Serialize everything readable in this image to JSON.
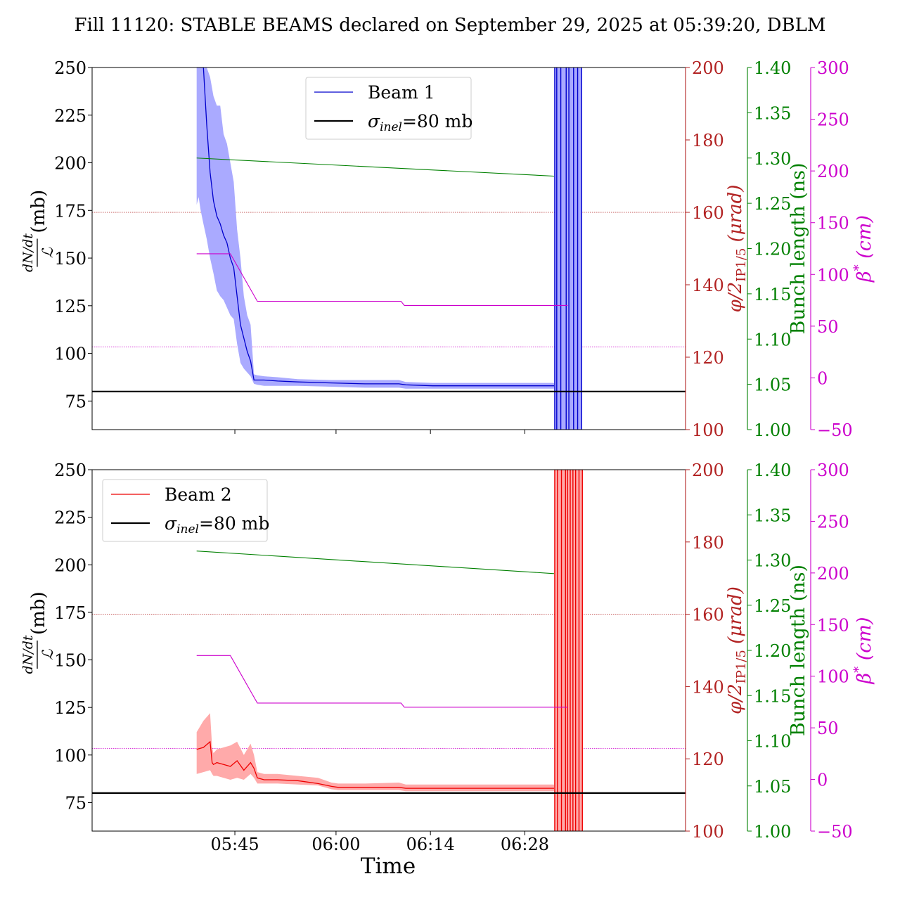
{
  "title": "Fill 11120: STABLE BEAMS declared on September 29, 2025 at 05:39:20, DBLM",
  "xlabel": "Time",
  "x_ticks": [
    "05:45",
    "06:00",
    "06:14",
    "06:28"
  ],
  "axis_labels": {
    "left_num": "dN/dt",
    "left_den": "ℒ",
    "left_unit": "(mb)",
    "crossing_main": "φ/2",
    "crossing_sub": "IP1/5",
    "crossing_unit": "(μrad)",
    "bunch": "Bunch length (ns)",
    "beta": "β",
    "beta_sup": "*",
    "beta_unit": "(cm)"
  },
  "colors": {
    "beam1": "#0000cc",
    "beam1_band": "#aaaaff",
    "beam2": "#ee0000",
    "beam2_band": "#ffaaaa",
    "crossing": "#b22222",
    "bunch": "#008000",
    "beta": "#cc00cc",
    "sigma": "#000000"
  },
  "chart_data": [
    {
      "type": "line",
      "panel": "top",
      "legend_position": "upper-center",
      "ylim": [
        60,
        250
      ],
      "yticks": [
        "75",
        "100",
        "125",
        "150",
        "175",
        "200",
        "225",
        "250"
      ],
      "crossing_ticks": [
        "100",
        "120",
        "140",
        "160",
        "180",
        "200"
      ],
      "bunch_ticks": [
        "1.00",
        "1.05",
        "1.10",
        "1.15",
        "1.20",
        "1.25",
        "1.30",
        "1.35",
        "1.40"
      ],
      "beta_ticks": [
        "−50",
        "0",
        "50",
        "100",
        "150",
        "200",
        "250",
        "300"
      ],
      "legend": [
        "Beam 1",
        "σinel=80 mb"
      ],
      "sigma_inel": 80,
      "beam": {
        "name": "Beam 1",
        "x_min": [
          0,
          0.3,
          0.6,
          1,
          1.5,
          2,
          2.5,
          3,
          3.5,
          4,
          4.5,
          5,
          5.5,
          6,
          6.5,
          7,
          7.5,
          8,
          8.5,
          9,
          10,
          12,
          15,
          20,
          25,
          30,
          31,
          35,
          40,
          45,
          50,
          52,
          52.5,
          53
        ],
        "mean": [
          250,
          250,
          250,
          250,
          220,
          195,
          180,
          172,
          168,
          162,
          158,
          150,
          145,
          130,
          115,
          108,
          101,
          96,
          86,
          86,
          86,
          85.5,
          85,
          84.5,
          84,
          84,
          83.5,
          83,
          83,
          83,
          83,
          83,
          83,
          83
        ],
        "lower": [
          178,
          182,
          175,
          168,
          160,
          150,
          142,
          133,
          130,
          128,
          124,
          120,
          118,
          105,
          95,
          92,
          90,
          88,
          84,
          83.5,
          83,
          83,
          83,
          82.5,
          82,
          82,
          81.5,
          81.5,
          81.5,
          81.5,
          81.5,
          81.5,
          81.5,
          81.5
        ],
        "upper": [
          250,
          250,
          250,
          250,
          250,
          245,
          235,
          230,
          230,
          215,
          210,
          200,
          190,
          165,
          150,
          130,
          120,
          115,
          89,
          88.5,
          88,
          87.5,
          86.5,
          86,
          86,
          86,
          85,
          84.5,
          84.5,
          84.5,
          84.5,
          84.5,
          84.5,
          84.5
        ],
        "spikes_x_min": [
          53.1,
          53.4,
          54.0,
          54.8,
          55.2,
          55.9,
          56.5,
          57.1
        ]
      },
      "crossing_urad": 160,
      "bunch_length": {
        "x_min": [
          0,
          53
        ],
        "ns": [
          1.3,
          1.28
        ]
      },
      "beta_cm": {
        "x_min": [
          0,
          5,
          9,
          30.3,
          30.8,
          55
        ],
        "cm": [
          120,
          120,
          74,
          74,
          70,
          70
        ]
      },
      "beta_ref_cm": 30
    },
    {
      "type": "line",
      "panel": "bottom",
      "legend_position": "upper-left",
      "ylim": [
        60,
        250
      ],
      "yticks": [
        "75",
        "100",
        "125",
        "150",
        "175",
        "200",
        "225",
        "250"
      ],
      "crossing_ticks": [
        "100",
        "120",
        "140",
        "160",
        "180",
        "200"
      ],
      "bunch_ticks": [
        "1.00",
        "1.05",
        "1.10",
        "1.15",
        "1.20",
        "1.25",
        "1.30",
        "1.35",
        "1.40"
      ],
      "beta_ticks": [
        "−50",
        "0",
        "50",
        "100",
        "150",
        "200",
        "250",
        "300"
      ],
      "legend": [
        "Beam 2",
        "σinel=80 mb"
      ],
      "sigma_inel": 80,
      "beam": {
        "name": "Beam 2",
        "x_min": [
          0,
          1,
          2,
          2.3,
          2.5,
          3,
          4,
          5,
          6,
          7,
          8,
          8.5,
          9,
          10,
          12,
          15,
          18,
          20,
          21,
          25,
          30,
          31,
          35,
          40,
          45,
          50,
          53
        ],
        "mean": [
          103,
          104,
          107,
          96,
          95,
          96,
          95,
          94,
          97,
          92,
          96,
          93,
          88,
          87,
          87,
          86.5,
          85,
          83.5,
          83,
          83,
          83,
          82.5,
          82.5,
          82.5,
          82.5,
          82.5,
          82.5
        ],
        "lower": [
          90,
          91,
          92,
          90,
          89,
          89,
          88,
          87,
          88,
          87,
          90,
          88,
          85,
          85,
          85,
          84.5,
          84,
          82,
          81.5,
          81.5,
          81.5,
          81,
          81,
          81,
          81,
          81,
          81
        ],
        "upper": [
          112,
          118,
          122,
          104,
          101,
          103,
          104,
          105,
          107,
          100,
          106,
          100,
          91,
          90,
          90,
          89,
          88,
          85.5,
          85,
          85,
          85.5,
          84.5,
          84.5,
          84.5,
          84.5,
          84.5,
          84.5
        ],
        "spikes_x_min": [
          53.1,
          53.5,
          54.1,
          54.7,
          55.0,
          55.4,
          55.8,
          56.2,
          56.7,
          57.2
        ]
      },
      "crossing_urad": 160,
      "bunch_length": {
        "x_min": [
          0,
          53
        ],
        "ns": [
          1.31,
          1.285
        ]
      },
      "beta_cm": {
        "x_min": [
          0,
          5,
          9,
          30.3,
          30.8,
          55
        ],
        "cm": [
          120,
          120,
          74,
          74,
          70,
          70
        ]
      },
      "beta_ref_cm": 30
    }
  ]
}
